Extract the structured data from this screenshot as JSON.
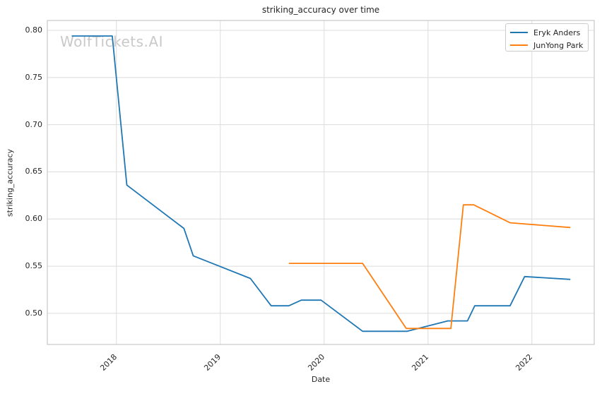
{
  "chart_data": {
    "type": "line",
    "title": "striking_accuracy over time",
    "xlabel": "Date",
    "ylabel": "striking_accuracy",
    "watermark": "WolfTickets.AI",
    "xlim": [
      2017.335,
      2022.6
    ],
    "ylim": [
      0.467,
      0.8105
    ],
    "x_ticks": [
      2018,
      2019,
      2020,
      2021,
      2022
    ],
    "x_tick_labels": [
      "2018",
      "2019",
      "2020",
      "2021",
      "2022"
    ],
    "y_ticks": [
      0.5,
      0.55,
      0.6,
      0.65,
      0.7,
      0.75,
      0.8
    ],
    "y_tick_labels": [
      "0.50",
      "0.55",
      "0.60",
      "0.65",
      "0.70",
      "0.75",
      "0.80"
    ],
    "grid": true,
    "legend": {
      "position": "upper right",
      "entries": [
        "Eryk Anders",
        "JunYong Park"
      ]
    },
    "series": [
      {
        "name": "Eryk Anders",
        "color": "#1f77b4",
        "x": [
          2017.57,
          2017.96,
          2018.1,
          2018.65,
          2018.74,
          2019.29,
          2019.49,
          2019.66,
          2019.78,
          2019.97,
          2020.37,
          2020.8,
          2021.19,
          2021.38,
          2021.45,
          2021.79,
          2021.93,
          2022.37
        ],
        "y": [
          0.794,
          0.794,
          0.636,
          0.59,
          0.561,
          0.537,
          0.508,
          0.508,
          0.514,
          0.514,
          0.481,
          0.481,
          0.492,
          0.492,
          0.508,
          0.508,
          0.539,
          0.536
        ]
      },
      {
        "name": "JunYong Park",
        "color": "#ff7f0e",
        "x": [
          2019.66,
          2020.37,
          2020.79,
          2021.22,
          2021.34,
          2021.44,
          2021.79,
          2022.37
        ],
        "y": [
          0.553,
          0.553,
          0.484,
          0.484,
          0.615,
          0.615,
          0.596,
          0.591
        ]
      }
    ],
    "colors": {
      "grid": "#dcdcdc",
      "spine": "#c9c9c9",
      "text": "#262626",
      "watermark": "#c9c9c9",
      "background": "#ffffff"
    }
  }
}
